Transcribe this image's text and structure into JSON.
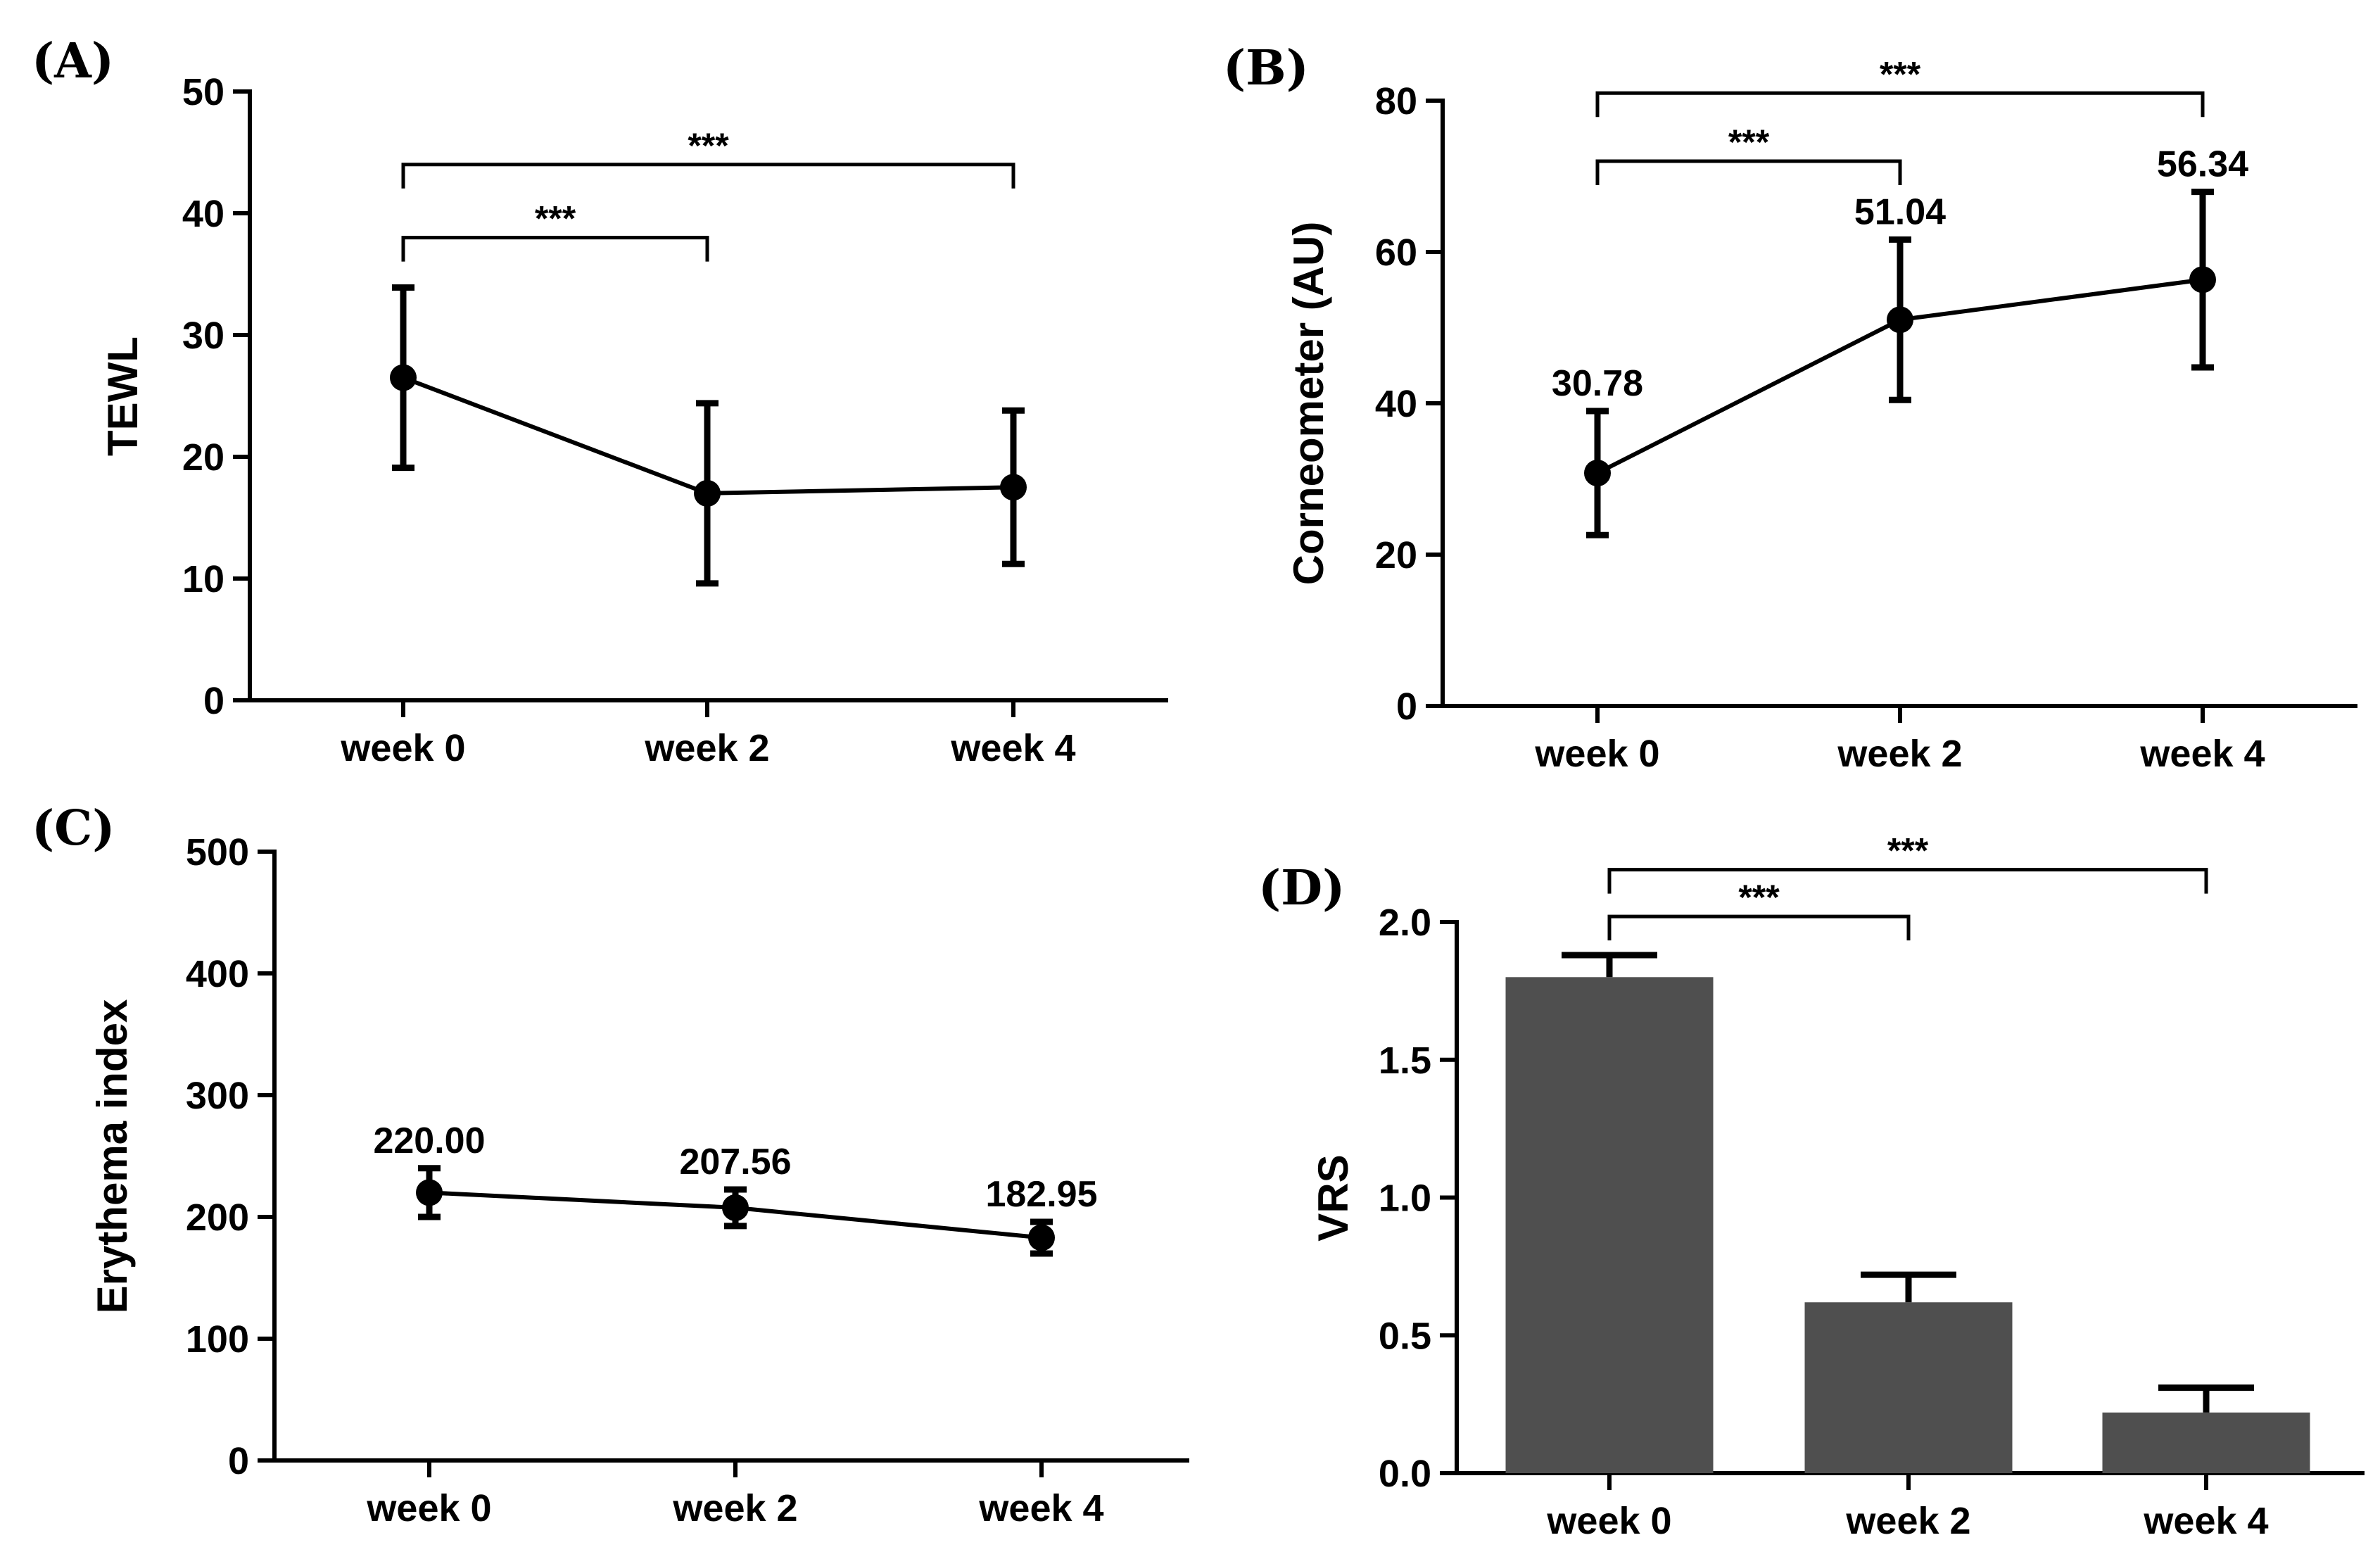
{
  "chart_data": [
    {
      "panel": "(A)",
      "type": "line",
      "ylabel": "TEWL",
      "ylim": [
        0,
        50
      ],
      "yticks": [
        0,
        10,
        20,
        30,
        40,
        50
      ],
      "categories": [
        "week 0",
        "week 2",
        "week 4"
      ],
      "values": [
        26.5,
        17.0,
        17.5
      ],
      "errors": [
        7.4,
        7.4,
        6.3
      ],
      "data_labels": [],
      "brackets": [
        {
          "from": "week 0",
          "to": "week 2",
          "label": "***",
          "y": 38
        },
        {
          "from": "week 0",
          "to": "week 4",
          "label": "***",
          "y": 44
        }
      ]
    },
    {
      "panel": "(B)",
      "type": "line",
      "ylabel": "Corneometer (AU)",
      "ylim": [
        0,
        80
      ],
      "yticks": [
        0,
        20,
        40,
        60,
        80
      ],
      "categories": [
        "week 0",
        "week 2",
        "week 4"
      ],
      "values": [
        30.78,
        51.04,
        56.34
      ],
      "errors": [
        8.2,
        10.6,
        11.6
      ],
      "data_labels": [
        "30.78",
        "51.04",
        "56.34"
      ],
      "brackets": [
        {
          "from": "week 0",
          "to": "week 2",
          "label": "***",
          "y": 72
        },
        {
          "from": "week 0",
          "to": "week 4",
          "label": "***",
          "y": 81
        }
      ]
    },
    {
      "panel": "(C)",
      "type": "line",
      "ylabel": "Erythema index",
      "ylim": [
        0,
        500
      ],
      "yticks": [
        0,
        100,
        200,
        300,
        400,
        500
      ],
      "categories": [
        "week 0",
        "week 2",
        "week 4"
      ],
      "values": [
        220.0,
        207.56,
        182.95
      ],
      "errors": [
        20,
        15,
        13
      ],
      "data_labels": [
        "220.00",
        "207.56",
        "182.95"
      ],
      "brackets": []
    },
    {
      "panel": "(D)",
      "type": "bar",
      "ylabel": "VRS",
      "ylim": [
        0,
        2.0
      ],
      "yticks": [
        "0.0",
        "0.5",
        "1.0",
        "1.5",
        "2.0"
      ],
      "categories": [
        "week 0",
        "week 2",
        "week 4"
      ],
      "values": [
        1.8,
        0.62,
        0.22
      ],
      "errors": [
        0.08,
        0.1,
        0.09
      ],
      "data_labels": [],
      "brackets": [
        {
          "from": "week 0",
          "to": "week 2",
          "label": "***",
          "y": 2.02
        },
        {
          "from": "week 0",
          "to": "week 4",
          "label": "***",
          "y": 2.19
        }
      ]
    }
  ]
}
